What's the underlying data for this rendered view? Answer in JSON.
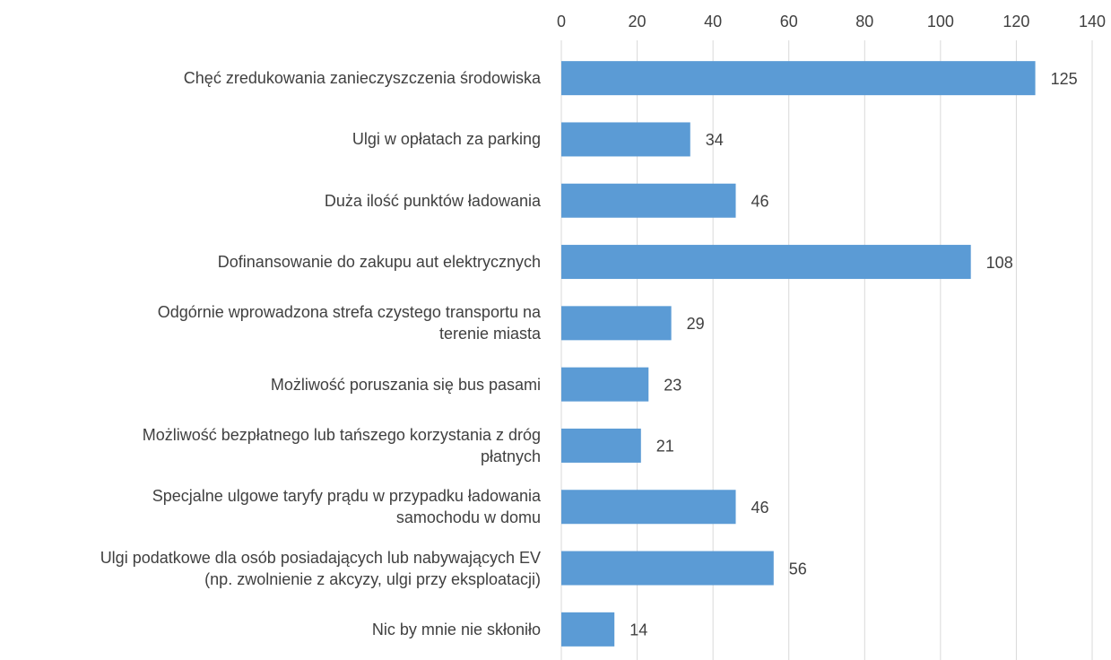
{
  "chart_data": {
    "type": "barh",
    "categories": [
      "Chęć zredukowania zanieczyszczenia środowiska",
      "Ulgi w opłatach za parking",
      "Duża ilość punktów ładowania",
      "Dofinansowanie do zakupu aut elektrycznych",
      "Odgórnie wprowadzona strefa czystego transportu na\nterenie miasta",
      "Możliwość poruszania się bus pasami",
      "Możliwość bezpłatnego lub tańszego korzystania z dróg\npłatnych",
      "Specjalne ulgowe taryfy prądu w przypadku ładowania\nsamochodu w domu",
      "Ulgi podatkowe dla osób posiadających lub nabywających EV\n(np. zwolnienie z akcyzy, ulgi przy eksploatacji)",
      "Nic by mnie nie skłoniło"
    ],
    "values": [
      125,
      34,
      46,
      108,
      29,
      23,
      21,
      46,
      56,
      14
    ],
    "color": "#5b9bd5",
    "xlim": [
      0,
      140
    ],
    "xticks": [
      0,
      20,
      40,
      60,
      80,
      100,
      120,
      140
    ],
    "grid": true
  }
}
